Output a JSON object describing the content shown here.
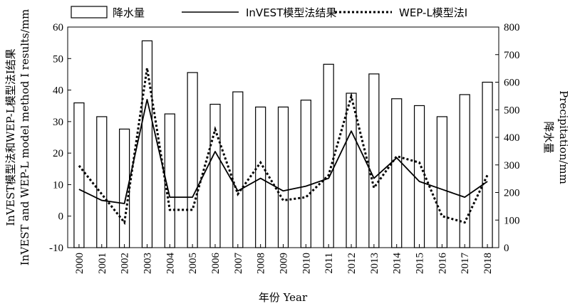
{
  "chart_data": {
    "type": "bar",
    "categories": [
      "2000",
      "2001",
      "2002",
      "2003",
      "2004",
      "2005",
      "2006",
      "2007",
      "2008",
      "2009",
      "2010",
      "2011",
      "2012",
      "2013",
      "2014",
      "2015",
      "2016",
      "2017",
      "2018"
    ],
    "series": [
      {
        "name": "降水量",
        "kind": "bar",
        "axis": "right",
        "values": [
          525,
          475,
          430,
          750,
          485,
          635,
          520,
          565,
          510,
          510,
          535,
          665,
          560,
          630,
          540,
          515,
          475,
          555,
          600
        ]
      },
      {
        "name": "InVEST模型法结果",
        "kind": "line",
        "axis": "left",
        "values": [
          8.5,
          5,
          4,
          37,
          6,
          6,
          20.5,
          8,
          12,
          8,
          9.5,
          12,
          27,
          12,
          18.5,
          11,
          8.5,
          6,
          11
        ]
      },
      {
        "name": "WEP-L模型法I",
        "kind": "dotted-line",
        "axis": "left",
        "values": [
          16,
          7,
          -2,
          47,
          2,
          2,
          27.5,
          7,
          17,
          5,
          6,
          13,
          38,
          9,
          19,
          17,
          0,
          -2,
          13
        ]
      }
    ],
    "xlabel": "年份 Year",
    "ylabel_left": [
      "InVEST模型法和WEP-L模型法I结果",
      "InVEST and WEP-L model method I results/mm"
    ],
    "ylabel_right": [
      "降水量",
      "Precipitation/mm"
    ],
    "ylim_left": [
      -10,
      60
    ],
    "ylim_right": [
      0,
      800
    ],
    "yticks_left": [
      -10,
      0,
      10,
      20,
      30,
      40,
      50,
      60
    ],
    "yticks_right": [
      0,
      100,
      200,
      300,
      400,
      500,
      600,
      700,
      800
    ],
    "legend_placement": "top",
    "grid": false
  }
}
